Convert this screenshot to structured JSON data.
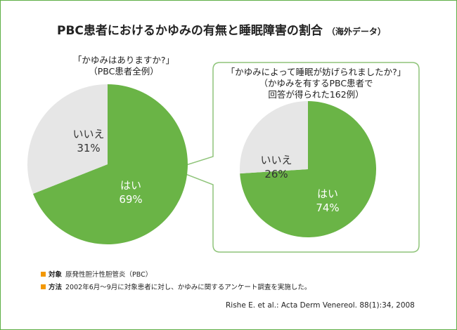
{
  "title": "PBC患者におけるかゆみの有無と睡眠障害の割合",
  "title_note": "（海外データ）",
  "chart_data": [
    {
      "type": "pie",
      "question": "「かゆみはありますか?」",
      "subtitle": "（PBC患者全例）",
      "slices": [
        {
          "label": "はい",
          "value": 69,
          "display": "69%",
          "color": "#6ab446"
        },
        {
          "label": "いいえ",
          "value": 31,
          "display": "31%",
          "color": "#e6e6e6"
        }
      ]
    },
    {
      "type": "pie",
      "question": "「かゆみによって睡眠が妨げられましたか?」",
      "subtitle": "（かゆみを有するPBC患者で",
      "subtitle2": "回答が得られた162例）",
      "slices": [
        {
          "label": "はい",
          "value": 74,
          "display": "74%",
          "color": "#6ab446"
        },
        {
          "label": "いいえ",
          "value": 26,
          "display": "26%",
          "color": "#e6e6e6"
        }
      ]
    }
  ],
  "notes": [
    {
      "key": "対象",
      "text": "原発性胆汁性胆管炎（PBC）"
    },
    {
      "key": "方法",
      "text": "2002年6月～9月に対象患者に対し、かゆみに関するアンケート調査を実施した。"
    }
  ],
  "citation": "Rishe E. et al.: Acta Derm Venereol. 88(1):34, 2008",
  "colors": {
    "border": "#5eae45",
    "bullet": "#f39800"
  }
}
